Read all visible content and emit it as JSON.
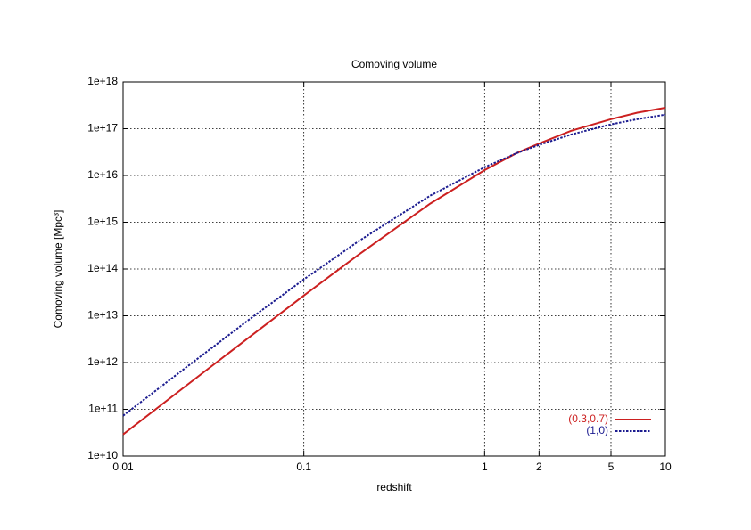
{
  "chart_data": {
    "type": "line",
    "title": "Comoving volume",
    "xlabel": "redshift",
    "ylabel": "Comoving volume [Mpc³]",
    "xscale": "log",
    "yscale": "log",
    "grid": true,
    "legend": "bottom right",
    "x": [
      0.01,
      0.02,
      0.05,
      0.1,
      0.2,
      0.5,
      1,
      1.5,
      2,
      3,
      5,
      7,
      10
    ],
    "series": [
      {
        "name": "(0.3,0.7)",
        "color": "#cc2020",
        "dash": "solid",
        "values": [
          29000000000.0,
          230000000000.0,
          3500000000000.0,
          27000000000000.0,
          200000000000000.0,
          2500000000000000.0,
          1.3e+16,
          3e+16,
          4.8e+16,
          9e+16,
          1.6e+17,
          2.2e+17,
          2.8e+17
        ]
      },
      {
        "name": "(1,0)",
        "color": "#1c1c90",
        "dash": "dotted",
        "values": [
          73000000000.0,
          570000000000.0,
          8400000000000.0,
          60000000000000.0,
          390000000000000.0,
          3700000000000000.0,
          1.5e+16,
          3e+16,
          4.5e+16,
          7.5e+16,
          1.24e+17,
          1.6e+17,
          2e+17
        ]
      }
    ],
    "xlim": [
      0.01,
      10
    ],
    "xticks": [
      0.01,
      0.1,
      1,
      2,
      5,
      10
    ],
    "ylim": [
      10000000000.0,
      1e+18
    ],
    "yticks": [
      {
        "value": 10000000000.0,
        "label": "1e+10"
      },
      {
        "value": 100000000000.0,
        "label": "1e+11"
      },
      {
        "value": 1000000000000.0,
        "label": "1e+12"
      },
      {
        "value": 10000000000000.0,
        "label": "1e+13"
      },
      {
        "value": 100000000000000.0,
        "label": "1e+14"
      },
      {
        "value": 1000000000000000.0,
        "label": "1e+15"
      },
      {
        "value": 1e+16,
        "label": "1e+16"
      },
      {
        "value": 1e+17,
        "label": "1e+17"
      },
      {
        "value": 1e+18,
        "label": "1e+18"
      }
    ]
  }
}
